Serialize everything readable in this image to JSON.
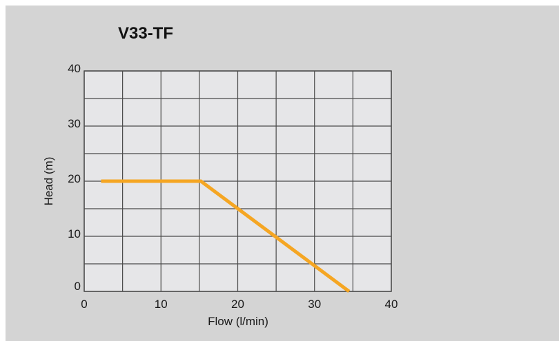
{
  "chart_data": {
    "type": "line",
    "title": "V33-TF",
    "xlabel": "Flow (l/min)",
    "ylabel": "Head (m)",
    "xlim": [
      0,
      40
    ],
    "ylim": [
      0,
      40
    ],
    "xticks": [
      0,
      10,
      20,
      30,
      40
    ],
    "yticks": [
      0,
      10,
      20,
      30,
      40
    ],
    "xtick_labels": [
      "0",
      "10",
      "20",
      "30",
      "40"
    ],
    "ytick_labels": [
      "0",
      "10",
      "20",
      "30",
      "40"
    ],
    "grid": true,
    "grid_x_step": 5,
    "grid_y_step": 5,
    "series": [
      {
        "x": [
          2.2,
          15.2,
          34.5
        ],
        "y": [
          20,
          20,
          0
        ],
        "color": "#f5a623"
      }
    ]
  },
  "colors": {
    "background": "#d4d4d4",
    "plot_fill": "#e6e6e8",
    "grid": "#4a4a4a",
    "curve": "#f5a623"
  }
}
